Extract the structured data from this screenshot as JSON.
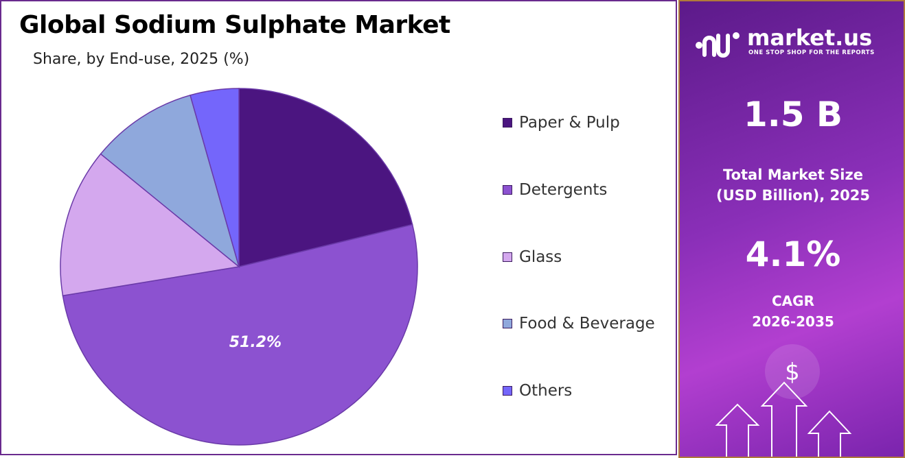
{
  "chart_data": {
    "type": "pie",
    "title": "Global Sodium Sulphate Market",
    "subtitle": "Share, by End-use, 2025 (%)",
    "slices": [
      {
        "label": "Paper & Pulp",
        "value": 21.2,
        "color": "#4b1580"
      },
      {
        "label": "Detergents",
        "value": 51.2,
        "color": "#8c52d0"
      },
      {
        "label": "Glass",
        "value": 13.5,
        "color": "#d4a8ee"
      },
      {
        "label": "Food & Beverage",
        "value": 9.7,
        "color": "#8fa8dc"
      },
      {
        "label": "Others",
        "value": 4.4,
        "color": "#7466fb"
      }
    ],
    "data_labels": [
      {
        "slice": "Detergents",
        "text": "51.2%"
      }
    ],
    "legend_position": "right"
  },
  "sidebar": {
    "brand_name": "market.us",
    "brand_tagline": "ONE STOP SHOP FOR THE REPORTS",
    "market_size_value": "1.5 B",
    "market_size_caption_line1": "Total Market Size",
    "market_size_caption_line2": "(USD Billion), 2025",
    "cagr_value": "4.1%",
    "cagr_caption_line1": "CAGR",
    "cagr_caption_line2": "2026-2035",
    "currency_symbol": "$"
  }
}
